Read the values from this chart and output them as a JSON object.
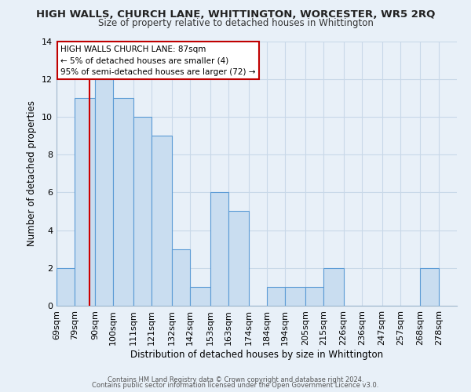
{
  "title": "HIGH WALLS, CHURCH LANE, WHITTINGTON, WORCESTER, WR5 2RQ",
  "subtitle": "Size of property relative to detached houses in Whittington",
  "xlabel": "Distribution of detached houses by size in Whittington",
  "ylabel": "Number of detached properties",
  "bin_labels": [
    "69sqm",
    "79sqm",
    "90sqm",
    "100sqm",
    "111sqm",
    "121sqm",
    "132sqm",
    "142sqm",
    "153sqm",
    "163sqm",
    "174sqm",
    "184sqm",
    "194sqm",
    "205sqm",
    "215sqm",
    "226sqm",
    "236sqm",
    "247sqm",
    "257sqm",
    "268sqm",
    "278sqm"
  ],
  "bar_values": [
    2,
    11,
    12,
    11,
    10,
    9,
    3,
    1,
    6,
    5,
    0,
    1,
    1,
    1,
    2,
    0,
    0,
    0,
    0,
    2
  ],
  "bar_color": "#c9ddf0",
  "bar_edgecolor": "#5b9bd5",
  "bin_edges": [
    69,
    79,
    90,
    100,
    111,
    121,
    132,
    142,
    153,
    163,
    174,
    184,
    194,
    205,
    215,
    226,
    236,
    247,
    257,
    268,
    278
  ],
  "ylim": [
    0,
    14
  ],
  "yticks": [
    0,
    2,
    4,
    6,
    8,
    10,
    12,
    14
  ],
  "grid_color": "#c8d8e8",
  "bg_color": "#e8f0f8",
  "annotation_box_text": "HIGH WALLS CHURCH LANE: 87sqm\n← 5% of detached houses are smaller (4)\n95% of semi-detached houses are larger (72) →",
  "annotation_box_color": "#ffffff",
  "annotation_box_edgecolor": "#c00000",
  "property_line_color": "#cc0000",
  "footer_line1": "Contains HM Land Registry data © Crown copyright and database right 2024.",
  "footer_line2": "Contains public sector information licensed under the Open Government Licence v3.0."
}
